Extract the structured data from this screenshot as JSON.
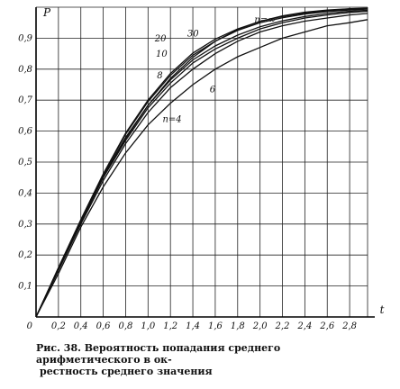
{
  "chart_data": {
    "type": "line",
    "title": "",
    "xlabel": "t",
    "ylabel": "P",
    "xlim": [
      0,
      2.96
    ],
    "ylim": [
      0,
      1.0
    ],
    "grid": true,
    "legend": "none",
    "x_ticks": [
      0.2,
      0.4,
      0.6,
      0.8,
      1.0,
      1.2,
      1.4,
      1.6,
      1.8,
      2.0,
      2.2,
      2.4,
      2.6,
      2.8
    ],
    "x_tick_labels": [
      "0,2",
      "0,4",
      "0,6",
      "0,8",
      "1,0",
      "1,2",
      "1,4",
      "1,6",
      "1,8",
      "2,0",
      "2,2",
      "2,4",
      "2,6",
      "2,8"
    ],
    "y_ticks": [
      0.1,
      0.2,
      0.3,
      0.4,
      0.5,
      0.6,
      0.7,
      0.8,
      0.9
    ],
    "y_tick_labels": [
      "0,1",
      "0,2",
      "0,3",
      "0,4",
      "0,5",
      "0,6",
      "0,7",
      "0,8",
      "0,9"
    ],
    "origin_label": "0",
    "series": [
      {
        "name": "n=4",
        "x": [
          0,
          0.2,
          0.4,
          0.6,
          0.8,
          1.0,
          1.2,
          1.4,
          1.6,
          1.8,
          2.0,
          2.2,
          2.4,
          2.6,
          2.8,
          2.96
        ],
        "values": [
          0,
          0.14,
          0.29,
          0.42,
          0.53,
          0.62,
          0.69,
          0.75,
          0.8,
          0.84,
          0.87,
          0.9,
          0.92,
          0.94,
          0.95,
          0.96
        ]
      },
      {
        "name": "6",
        "x": [
          0,
          0.2,
          0.4,
          0.6,
          0.8,
          1.0,
          1.2,
          1.4,
          1.6,
          1.8,
          2.0,
          2.2,
          2.4,
          2.6,
          2.8,
          2.96
        ],
        "values": [
          0,
          0.15,
          0.3,
          0.44,
          0.56,
          0.66,
          0.74,
          0.8,
          0.85,
          0.89,
          0.92,
          0.94,
          0.955,
          0.965,
          0.975,
          0.98
        ]
      },
      {
        "name": "8",
        "x": [
          0,
          0.2,
          0.4,
          0.6,
          0.8,
          1.0,
          1.2,
          1.4,
          1.6,
          1.8,
          2.0,
          2.2,
          2.4,
          2.6,
          2.8,
          2.96
        ],
        "values": [
          0,
          0.155,
          0.305,
          0.45,
          0.57,
          0.675,
          0.755,
          0.82,
          0.865,
          0.9,
          0.93,
          0.95,
          0.965,
          0.975,
          0.983,
          0.987
        ]
      },
      {
        "name": "10",
        "x": [
          0,
          0.2,
          0.4,
          0.6,
          0.8,
          1.0,
          1.2,
          1.4,
          1.6,
          1.8,
          2.0,
          2.2,
          2.4,
          2.6,
          2.8,
          2.96
        ],
        "values": [
          0,
          0.156,
          0.31,
          0.455,
          0.58,
          0.683,
          0.765,
          0.83,
          0.875,
          0.91,
          0.937,
          0.956,
          0.97,
          0.98,
          0.987,
          0.99
        ]
      },
      {
        "name": "20",
        "x": [
          0,
          0.2,
          0.4,
          0.6,
          0.8,
          1.0,
          1.2,
          1.4,
          1.6,
          1.8,
          2.0,
          2.2,
          2.4,
          2.6,
          2.8,
          2.96
        ],
        "values": [
          0,
          0.158,
          0.313,
          0.46,
          0.59,
          0.695,
          0.78,
          0.845,
          0.89,
          0.925,
          0.95,
          0.966,
          0.978,
          0.986,
          0.991,
          0.994
        ]
      },
      {
        "name": "30",
        "x": [
          0,
          0.2,
          0.4,
          0.6,
          0.8,
          1.0,
          1.2,
          1.4,
          1.6,
          1.8,
          2.0,
          2.2,
          2.4,
          2.6,
          2.8,
          2.96
        ],
        "values": [
          0,
          0.159,
          0.314,
          0.462,
          0.594,
          0.7,
          0.786,
          0.852,
          0.897,
          0.93,
          0.954,
          0.97,
          0.981,
          0.988,
          0.993,
          0.995
        ]
      },
      {
        "name": "n=∞",
        "x": [
          0,
          0.2,
          0.4,
          0.6,
          0.8,
          1.0,
          1.2,
          1.4,
          1.6,
          1.8,
          2.0,
          2.2,
          2.4,
          2.6,
          2.8,
          2.96
        ],
        "values": [
          0,
          0.159,
          0.311,
          0.451,
          0.576,
          0.683,
          0.77,
          0.838,
          0.89,
          0.928,
          0.954,
          0.972,
          0.984,
          0.991,
          0.995,
          0.997
        ]
      }
    ],
    "annotations": [
      {
        "text": "n=∞",
        "x": 1.95,
        "y": 0.95,
        "series": "n=∞"
      },
      {
        "text": "30",
        "x": 1.35,
        "y": 0.905,
        "series": "30"
      },
      {
        "text": "20",
        "x": 1.06,
        "y": 0.89,
        "series": "20"
      },
      {
        "text": "10",
        "x": 1.07,
        "y": 0.84,
        "series": "10"
      },
      {
        "text": "8",
        "x": 1.08,
        "y": 0.77,
        "series": "8"
      },
      {
        "text": "6",
        "x": 1.55,
        "y": 0.725,
        "series": "6"
      },
      {
        "text": "n=4",
        "x": 1.13,
        "y": 0.63,
        "series": "n=4"
      }
    ]
  },
  "caption": {
    "line1": "Рис.  38.  Вероятность  попадания  среднего  арифметического  в  ок-",
    "line2": "рестность  среднего значения"
  }
}
